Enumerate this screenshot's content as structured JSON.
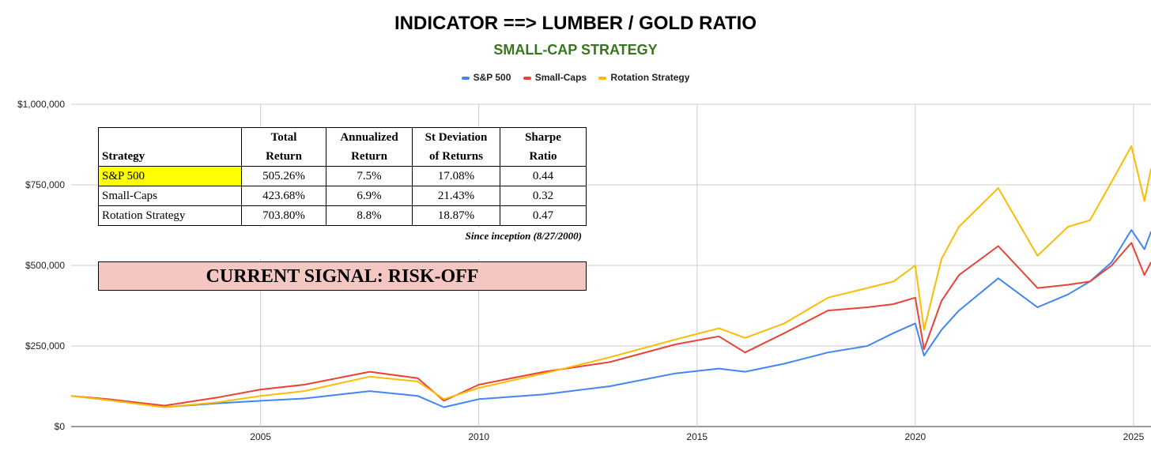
{
  "chart_data": {
    "type": "line",
    "title": "INDICATOR ==> LUMBER / GOLD RATIO",
    "subtitle": "SMALL-CAP STRATEGY",
    "legend_position": "top-center",
    "grid": true,
    "ylim": [
      0,
      1000000
    ],
    "y_ticks": [
      0,
      250000,
      500000,
      750000,
      1000000
    ],
    "y_tick_labels": [
      "$0",
      "$250,000",
      "$500,000",
      "$750,000",
      "$1,000,000"
    ],
    "x_range": [
      2000.66,
      2025.4
    ],
    "x_ticks": [
      2005,
      2010,
      2015,
      2020,
      2025
    ],
    "x_tick_labels": [
      "2005",
      "2010",
      "2015",
      "2020",
      "2025"
    ],
    "x": [
      2000.66,
      2001.5,
      2002.8,
      2004.0,
      2005.0,
      2006.0,
      2007.5,
      2008.6,
      2009.2,
      2010.0,
      2011.5,
      2013.0,
      2014.5,
      2015.5,
      2016.1,
      2017.0,
      2018.0,
      2018.9,
      2019.5,
      2020.0,
      2020.2,
      2020.6,
      2021.0,
      2021.9,
      2022.8,
      2023.5,
      2024.0,
      2024.5,
      2024.95,
      2025.25,
      2025.4
    ],
    "series": [
      {
        "name": "S&P 500",
        "color": "#4285f4",
        "values": [
          95000,
          82000,
          60000,
          72000,
          80000,
          87000,
          110000,
          95000,
          60000,
          85000,
          100000,
          125000,
          165000,
          180000,
          170000,
          195000,
          230000,
          250000,
          290000,
          320000,
          220000,
          300000,
          360000,
          460000,
          370000,
          410000,
          450000,
          510000,
          610000,
          550000,
          605000
        ]
      },
      {
        "name": "Small-Caps",
        "color": "#ea4335",
        "values": [
          95000,
          85000,
          65000,
          90000,
          115000,
          130000,
          170000,
          150000,
          80000,
          130000,
          170000,
          200000,
          255000,
          280000,
          230000,
          290000,
          360000,
          370000,
          380000,
          400000,
          240000,
          390000,
          470000,
          560000,
          430000,
          440000,
          450000,
          500000,
          570000,
          470000,
          510000
        ]
      },
      {
        "name": "Rotation Strategy",
        "color": "#fbbc04",
        "values": [
          95000,
          82000,
          60000,
          75000,
          95000,
          110000,
          155000,
          140000,
          85000,
          120000,
          165000,
          215000,
          270000,
          305000,
          275000,
          320000,
          400000,
          430000,
          450000,
          500000,
          300000,
          520000,
          620000,
          740000,
          530000,
          620000,
          640000,
          760000,
          870000,
          700000,
          800000
        ]
      }
    ]
  },
  "stats_table": {
    "headers": [
      "Strategy",
      "Total Return",
      "Annualized Return",
      "St Deviation of Returns",
      "Sharpe Ratio"
    ],
    "rows": [
      {
        "name": "S&P 500",
        "total": "505.26%",
        "annualized": "7.5%",
        "stdev": "17.08%",
        "sharpe": "0.44"
      },
      {
        "name": "Small-Caps",
        "total": "423.68%",
        "annualized": "6.9%",
        "stdev": "21.43%",
        "sharpe": "0.32"
      },
      {
        "name": "Rotation Strategy",
        "total": "703.80%",
        "annualized": "8.8%",
        "stdev": "18.87%",
        "sharpe": "0.47"
      }
    ],
    "highlight_color": "#ffff00",
    "footnote": "Since inception (8/27/2000)"
  },
  "signal": {
    "text": "CURRENT SIGNAL: RISK-OFF",
    "background": "#f4c7c3"
  }
}
